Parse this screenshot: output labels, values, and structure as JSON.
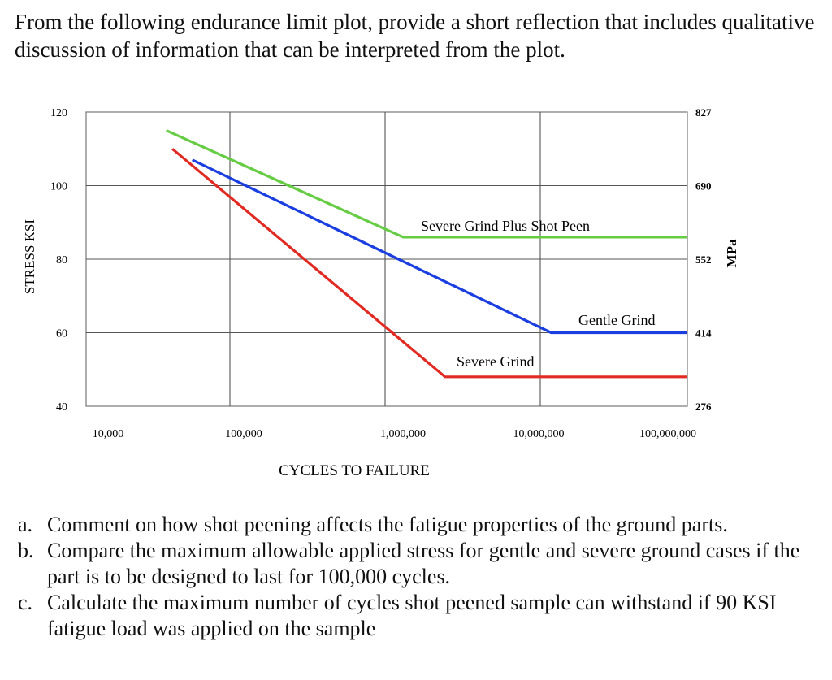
{
  "prompt": {
    "intro": "From the following endurance limit plot, provide a short reflection that includes qualitative discussion of information that can be interpreted from the plot."
  },
  "questions": [
    {
      "marker": "a.",
      "text": "Comment on how shot peening affects the fatigue properties of the ground parts."
    },
    {
      "marker": "b.",
      "text": "Compare the maximum allowable applied stress for gentle and severe ground cases if the part is to be designed to last for 100,000 cycles."
    },
    {
      "marker": "c.",
      "text": "Calculate the maximum number of cycles shot peened sample can withstand if 90 KSI fatigue load was applied on the sample"
    }
  ],
  "chart_data": {
    "type": "line",
    "title": "",
    "xlabel": "CYCLES TO FAILURE",
    "ylabel": "STRESS KSI",
    "y2label": "MPa",
    "xscale": "log",
    "xlim": [
      10000,
      100000000
    ],
    "ylim": [
      40,
      120
    ],
    "xticks": [
      {
        "value": 10000,
        "label": "10,000"
      },
      {
        "value": 100000,
        "label": "100,000"
      },
      {
        "value": 1000000,
        "label": "1,000,000"
      },
      {
        "value": 10000000,
        "label": "10,000,000"
      },
      {
        "value": 100000000,
        "label": "100,000,000"
      }
    ],
    "yticks": [
      {
        "value": 40,
        "label": "40"
      },
      {
        "value": 60,
        "label": "60"
      },
      {
        "value": 80,
        "label": "80"
      },
      {
        "value": 100,
        "label": "100"
      },
      {
        "value": 120,
        "label": "120"
      }
    ],
    "y2ticks": [
      {
        "value": 40,
        "label": "276"
      },
      {
        "value": 60,
        "label": "414"
      },
      {
        "value": 80,
        "label": "552"
      },
      {
        "value": 100,
        "label": "690"
      },
      {
        "value": 120,
        "label": "827"
      }
    ],
    "grid": true,
    "series": [
      {
        "name": "Severe Grind Plus Shot Peen",
        "color": "#66cc44",
        "x": [
          30000,
          1200000,
          100000000
        ],
        "y": [
          115,
          86,
          86
        ]
      },
      {
        "name": "Gentle Grind",
        "color": "#1a3ee0",
        "x": [
          45000,
          12000000,
          100000000
        ],
        "y": [
          107,
          60,
          60
        ]
      },
      {
        "name": "Severe Grind",
        "color": "#e02a22",
        "x": [
          33000,
          2300000,
          100000000
        ],
        "y": [
          110,
          48,
          48
        ]
      }
    ]
  }
}
